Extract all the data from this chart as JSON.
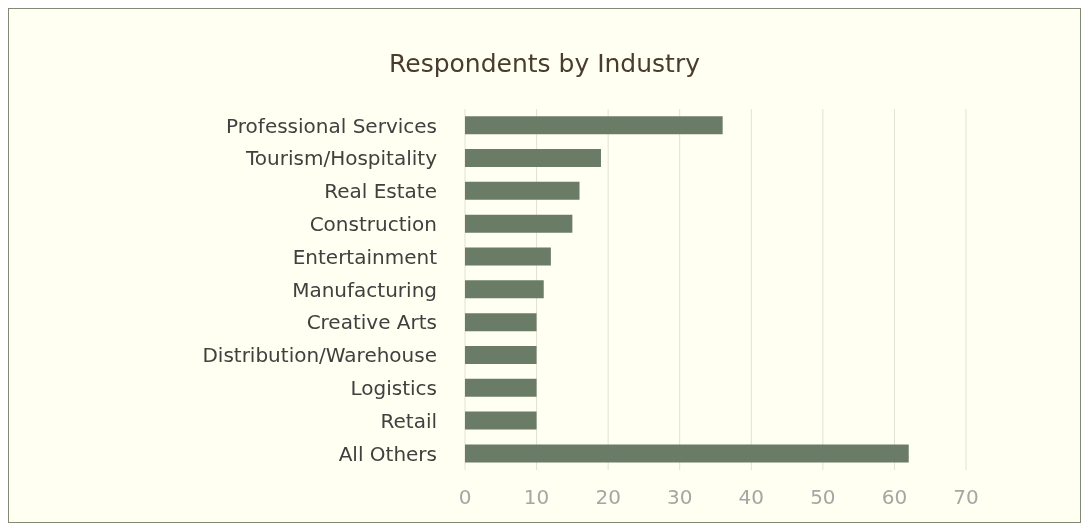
{
  "chart_data": {
    "type": "bar",
    "orientation": "horizontal",
    "title": "Respondents by Industry",
    "categories": [
      "Professional Services",
      "Tourism/Hospitality",
      "Real Estate",
      "Construction",
      "Entertainment",
      "Manufacturing",
      "Creative Arts",
      "Distribution/Warehouse",
      "Logistics",
      "Retail",
      "All Others"
    ],
    "values": [
      36,
      19,
      16,
      15,
      12,
      11,
      10,
      10,
      10,
      10,
      62
    ],
    "color": "#6b7c66",
    "xlim": [
      0,
      70
    ],
    "xticks": [
      0,
      10,
      20,
      30,
      40,
      50,
      60,
      70
    ],
    "grid": "x"
  }
}
